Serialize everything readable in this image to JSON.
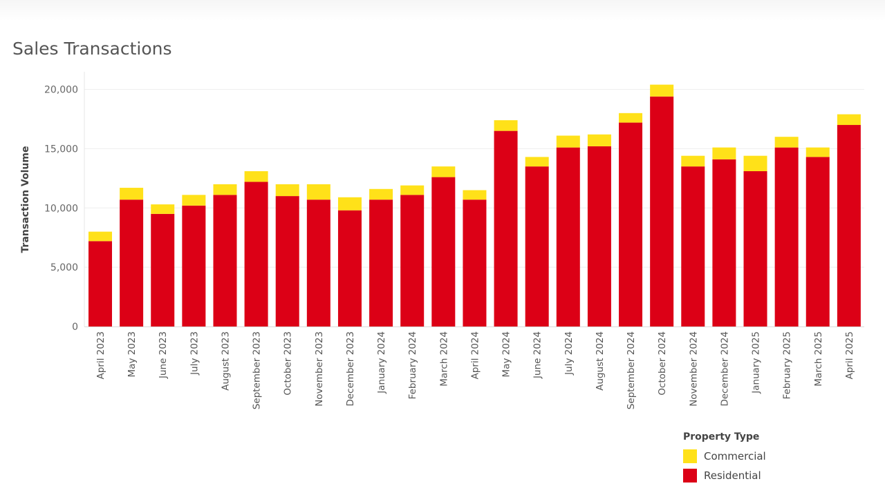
{
  "chart_data": {
    "type": "bar",
    "stacked": true,
    "title": "Sales Transactions",
    "ylabel": "Transaction Volume",
    "xlabel": "",
    "ylim": [
      0,
      20000
    ],
    "yticks": [
      0,
      5000,
      10000,
      15000,
      20000
    ],
    "ytick_labels": [
      "0",
      "5,000",
      "10,000",
      "15,000",
      "20,000"
    ],
    "grid": true,
    "legend_title": "Property Type",
    "legend_position": "bottom-right",
    "categories": [
      "April 2023",
      "May 2023",
      "June 2023",
      "July 2023",
      "August 2023",
      "September 2023",
      "October 2023",
      "November 2023",
      "December 2023",
      "January 2024",
      "February 2024",
      "March 2024",
      "April 2024",
      "May 2024",
      "June 2024",
      "July 2024",
      "August 2024",
      "September 2024",
      "October 2024",
      "November 2024",
      "December 2024",
      "January 2025",
      "February 2025",
      "March 2025",
      "April 2025"
    ],
    "series": [
      {
        "name": "Residential",
        "color": "#dc0016",
        "values": [
          7200,
          10700,
          9500,
          10200,
          11100,
          12200,
          11000,
          10700,
          9800,
          10700,
          11100,
          12600,
          10700,
          16500,
          13500,
          15100,
          15200,
          17200,
          19400,
          13500,
          14100,
          13100,
          15100,
          14300,
          17000
        ]
      },
      {
        "name": "Commercial",
        "color": "#ffe119",
        "values": [
          800,
          1000,
          800,
          900,
          900,
          900,
          1000,
          1300,
          1100,
          900,
          800,
          900,
          800,
          900,
          800,
          1000,
          1000,
          800,
          1000,
          900,
          1000,
          1300,
          900,
          800,
          900
        ]
      }
    ]
  }
}
